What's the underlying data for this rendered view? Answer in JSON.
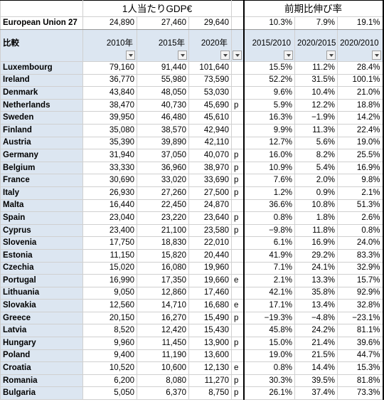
{
  "header": {
    "gdp_title": "1人当たりGDP€",
    "growth_title": "前期比伸び率"
  },
  "eu_row": [
    "European Union 27",
    "24,890",
    "27,460",
    "29,640",
    null,
    "10.3%",
    "7.9%",
    "19.1%"
  ],
  "column_headers": [
    "比較",
    "2010年",
    "2015年",
    "2020年",
    null,
    "2015/2010",
    "2020/2015",
    "2020/2010"
  ],
  "rows": [
    [
      "Luxembourg",
      "79,160",
      "91,440",
      "101,640",
      null,
      "15.5%",
      "11.2%",
      "28.4%"
    ],
    [
      "Ireland",
      "36,770",
      "55,980",
      "73,590",
      null,
      "52.2%",
      "31.5%",
      "100.1%"
    ],
    [
      "Denmark",
      "43,840",
      "48,050",
      "53,030",
      null,
      "9.6%",
      "10.4%",
      "21.0%"
    ],
    [
      "Netherlands",
      "38,470",
      "40,730",
      "45,690",
      "p",
      "5.9%",
      "12.2%",
      "18.8%"
    ],
    [
      "Sweden",
      "39,950",
      "46,480",
      "45,610",
      null,
      "16.3%",
      "−1.9%",
      "14.2%"
    ],
    [
      "Finland",
      "35,080",
      "38,570",
      "42,940",
      null,
      "9.9%",
      "11.3%",
      "22.4%"
    ],
    [
      "Austria",
      "35,390",
      "39,890",
      "42,110",
      null,
      "12.7%",
      "5.6%",
      "19.0%"
    ],
    [
      "Germany",
      "31,940",
      "37,050",
      "40,070",
      "p",
      "16.0%",
      "8.2%",
      "25.5%"
    ],
    [
      "Belgium",
      "33,330",
      "36,960",
      "38,970",
      "p",
      "10.9%",
      "5.4%",
      "16.9%"
    ],
    [
      "France",
      "30,690",
      "33,020",
      "33,690",
      "p",
      "7.6%",
      "2.0%",
      "9.8%"
    ],
    [
      "Italy",
      "26,930",
      "27,260",
      "27,500",
      "p",
      "1.2%",
      "0.9%",
      "2.1%"
    ],
    [
      "Malta",
      "16,440",
      "22,450",
      "24,870",
      null,
      "36.6%",
      "10.8%",
      "51.3%"
    ],
    [
      "Spain",
      "23,040",
      "23,220",
      "23,640",
      "p",
      "0.8%",
      "1.8%",
      "2.6%"
    ],
    [
      "Cyprus",
      "23,400",
      "21,100",
      "23,580",
      "p",
      "−9.8%",
      "11.8%",
      "0.8%"
    ],
    [
      "Slovenia",
      "17,750",
      "18,830",
      "22,010",
      null,
      "6.1%",
      "16.9%",
      "24.0%"
    ],
    [
      "Estonia",
      "11,150",
      "15,820",
      "20,440",
      null,
      "41.9%",
      "29.2%",
      "83.3%"
    ],
    [
      "Czechia",
      "15,020",
      "16,080",
      "19,960",
      null,
      "7.1%",
      "24.1%",
      "32.9%"
    ],
    [
      "Portugal",
      "16,990",
      "17,350",
      "19,660",
      "e",
      "2.1%",
      "13.3%",
      "15.7%"
    ],
    [
      "Lithuania",
      "9,050",
      "12,860",
      "17,460",
      null,
      "42.1%",
      "35.8%",
      "92.9%"
    ],
    [
      "Slovakia",
      "12,560",
      "14,710",
      "16,680",
      "e",
      "17.1%",
      "13.4%",
      "32.8%"
    ],
    [
      "Greece",
      "20,150",
      "16,270",
      "15,490",
      "p",
      "−19.3%",
      "−4.8%",
      "−23.1%"
    ],
    [
      "Latvia",
      "8,520",
      "12,420",
      "15,430",
      null,
      "45.8%",
      "24.2%",
      "81.1%"
    ],
    [
      "Hungary",
      "9,960",
      "11,450",
      "13,900",
      "p",
      "15.0%",
      "21.4%",
      "39.6%"
    ],
    [
      "Poland",
      "9,400",
      "11,190",
      "13,600",
      null,
      "19.0%",
      "21.5%",
      "44.7%"
    ],
    [
      "Croatia",
      "10,520",
      "10,600",
      "12,130",
      "e",
      "0.8%",
      "14.4%",
      "15.3%"
    ],
    [
      "Romania",
      "6,200",
      "8,080",
      "11,270",
      "p",
      "30.3%",
      "39.5%",
      "81.8%"
    ],
    [
      "Bulgaria",
      "5,050",
      "6,370",
      "8,750",
      "p",
      "26.1%",
      "37.4%",
      "73.3%"
    ]
  ]
}
